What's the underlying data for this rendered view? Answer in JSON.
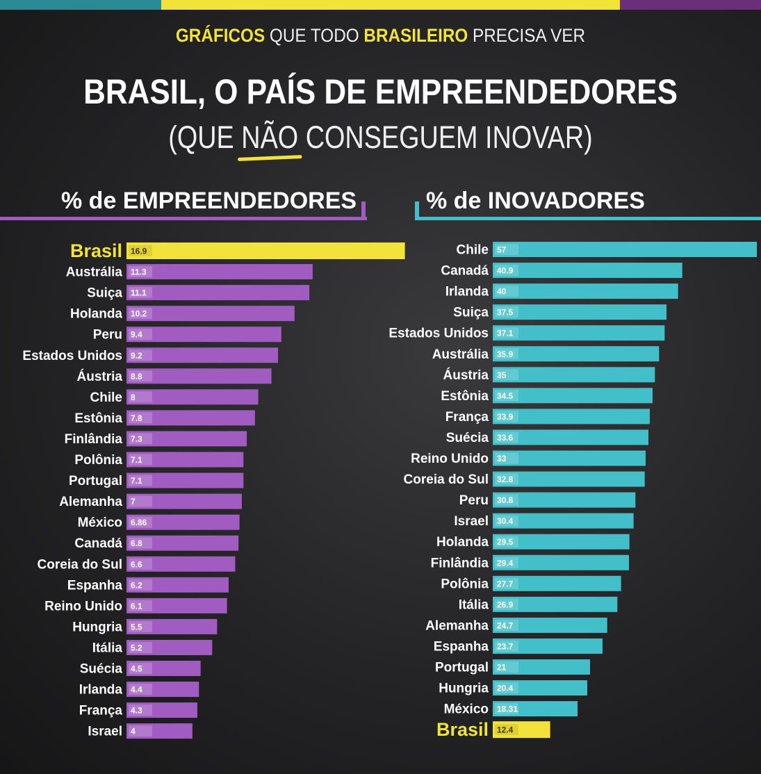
{
  "header": {
    "subtitle_p1": "GRÁFICOS",
    "subtitle_p2": " QUE TODO ",
    "subtitle_p3": "BRASILEIRO",
    "subtitle_p4": " PRECISA VER",
    "title": "BRASIL, O PAÍS DE EMPREENDEDORES",
    "title2_p1": "(QUE ",
    "title2_p2": "NÃO",
    "title2_p3": " CONSEGUEM INOVAR)"
  },
  "colors": {
    "yellow": "#f2e33a",
    "purple": "#a15cc1",
    "teal": "#43bfc9"
  },
  "chart_data": [
    {
      "type": "bar",
      "orientation": "horizontal",
      "title": "% de EMPREENDEDORES",
      "highlight": "Brasil",
      "xlim": [
        0,
        17
      ],
      "categories": [
        "Brasil",
        "Austrália",
        "Suiça",
        "Holanda",
        "Peru",
        "Estados Unidos",
        "Áustria",
        "Chile",
        "Estônia",
        "Finlândia",
        "Polônia",
        "Portugal",
        "Alemanha",
        "México",
        "Canadá",
        "Coreia do Sul",
        "Espanha",
        "Reino Unido",
        "Hungria",
        "Itália",
        "Suécia",
        "Irlanda",
        "França",
        "Israel"
      ],
      "values": [
        16.9,
        11.3,
        11.1,
        10.2,
        9.4,
        9.2,
        8.8,
        8,
        7.8,
        7.3,
        7.1,
        7.1,
        7,
        6.86,
        6.8,
        6.6,
        6.2,
        6.1,
        5.5,
        5.2,
        4.5,
        4.4,
        4.3,
        4
      ],
      "value_labels": [
        "16.9",
        "11.3",
        "11.1",
        "10.2",
        "9.4",
        "9.2",
        "8.8",
        "8",
        "7.8",
        "7.3",
        "7.1",
        "7.1",
        "7",
        "6.86",
        "6.8",
        "6.6",
        "6.2",
        "6.1",
        "5.5",
        "5.2",
        "4.5",
        "4.4",
        "4.3",
        "4"
      ]
    },
    {
      "type": "bar",
      "orientation": "horizontal",
      "title": "% de INOVADORES",
      "highlight": "Brasil",
      "xlim": [
        0,
        57
      ],
      "categories": [
        "Chile",
        "Canadá",
        "Irlanda",
        "Suiça",
        "Estados Unidos",
        "Austrália",
        "Áustria",
        "Estônia",
        "França",
        "Suécia",
        "Reino Unido",
        "Coreia do Sul",
        "Peru",
        "Israel",
        "Holanda",
        "Finlândia",
        "Polônia",
        "Itália",
        "Alemanha",
        "Espanha",
        "Portugal",
        "Hungria",
        "México",
        "Brasil"
      ],
      "values": [
        57,
        40.9,
        40,
        37.5,
        37.1,
        35.9,
        35,
        34.5,
        33.9,
        33.6,
        33,
        32.8,
        30.8,
        30.4,
        29.5,
        29.4,
        27.7,
        26.9,
        24.7,
        23.7,
        21,
        20.4,
        18.31,
        12.4
      ],
      "value_labels": [
        "57",
        "40.9",
        "40",
        "37.5",
        "37.1",
        "35.9",
        "35",
        "34.5",
        "33.9",
        "33.6",
        "33",
        "32.8",
        "30.8",
        "30.4",
        "29.5",
        "29.4",
        "27.7",
        "26.9",
        "24.7",
        "23.7",
        "21",
        "20.4",
        "18.31",
        "12.4"
      ]
    }
  ]
}
